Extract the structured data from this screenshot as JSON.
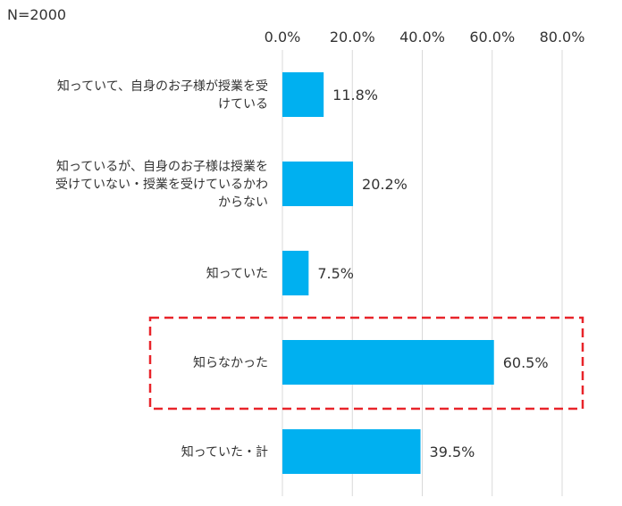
{
  "note": "N=2000",
  "chart_data": {
    "type": "bar",
    "orientation": "horizontal",
    "xlim": [
      0,
      80
    ],
    "ticks": [
      "0.0%",
      "20.0%",
      "40.0%",
      "60.0%",
      "80.0%"
    ],
    "tick_values": [
      0,
      20,
      40,
      60,
      80
    ],
    "grid": true,
    "bar_color": "#00b0f0",
    "highlight_color": "#e8242a",
    "highlight_category_index": 3,
    "categories": [
      [
        "知っていて、自身のお子様が授業を受",
        "けている"
      ],
      [
        "知っているが、自身のお子様は授業を",
        "受けていない・授業を受けているかわ",
        "からない"
      ],
      [
        "知っていた"
      ],
      [
        "知らなかった"
      ],
      [
        "知っていた・計"
      ]
    ],
    "values": [
      11.8,
      20.2,
      7.5,
      60.5,
      39.5
    ],
    "value_labels": [
      "11.8%",
      "20.2%",
      "7.5%",
      "60.5%",
      "39.5%"
    ]
  }
}
